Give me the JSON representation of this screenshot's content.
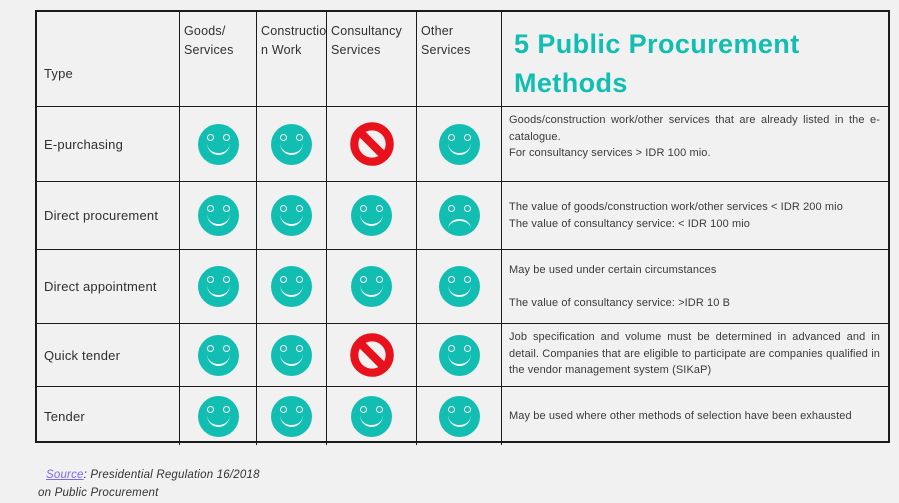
{
  "title": "5 Public Procurement Methods",
  "colors": {
    "accent_teal": "#12bdb2",
    "prohibited_red": "#e8111c",
    "source_link_purple": "#7b68f0"
  },
  "table": {
    "columns": [
      {
        "label": "Type"
      },
      {
        "label": "Goods/\nServices"
      },
      {
        "label": "Constructio\nn Work"
      },
      {
        "label": "Consultancy\nServices"
      },
      {
        "label": "Other Services"
      }
    ],
    "icon_legend": {
      "smile": "teal smiley face (allowed)",
      "frown": "teal sad face",
      "prohibited": "red no-entry sign (not allowed)"
    },
    "rows": [
      {
        "type": "E-purchasing",
        "icons": [
          "smile",
          "smile",
          "prohibited",
          "smile"
        ],
        "description": [
          "Goods/construction work/other services that are already listed in the e-catalogue.",
          "For consultancy services > IDR 100 mio."
        ],
        "justify": true,
        "align": "top",
        "gap": false
      },
      {
        "type": "Direct procurement",
        "icons": [
          "smile",
          "smile",
          "smile",
          "frown"
        ],
        "description": [
          "The value of goods/construction work/other services < IDR 200 mio",
          "The value of consultancy service: < IDR 100 mio"
        ],
        "justify": false,
        "align": "center",
        "gap": false
      },
      {
        "type": "Direct appointment",
        "icons": [
          "smile",
          "smile",
          "smile",
          "smile"
        ],
        "description": [
          "May be used under  certain circumstances",
          "The value of consultancy service: >IDR 10 B"
        ],
        "justify": false,
        "align": "center",
        "gap": true
      },
      {
        "type": "Quick tender",
        "icons": [
          "smile",
          "smile",
          "prohibited",
          "smile"
        ],
        "description": [
          "Job specification and volume must be determined in advanced and in detail. Companies that are eligible to participate are companies qualified in the vendor management system (SIKaP)"
        ],
        "justify": true,
        "align": "top",
        "gap": false
      },
      {
        "type": "Tender",
        "icons": [
          "smile",
          "smile",
          "smile",
          "smile"
        ],
        "description": [
          "May be used where other methods of selection have been exhausted"
        ],
        "justify": false,
        "align": "center",
        "gap": false
      }
    ]
  },
  "footer": {
    "link_label": "Source",
    "line1_rest": ": Presidential Regulation 16/2018",
    "line2": "on Public Procurement"
  }
}
